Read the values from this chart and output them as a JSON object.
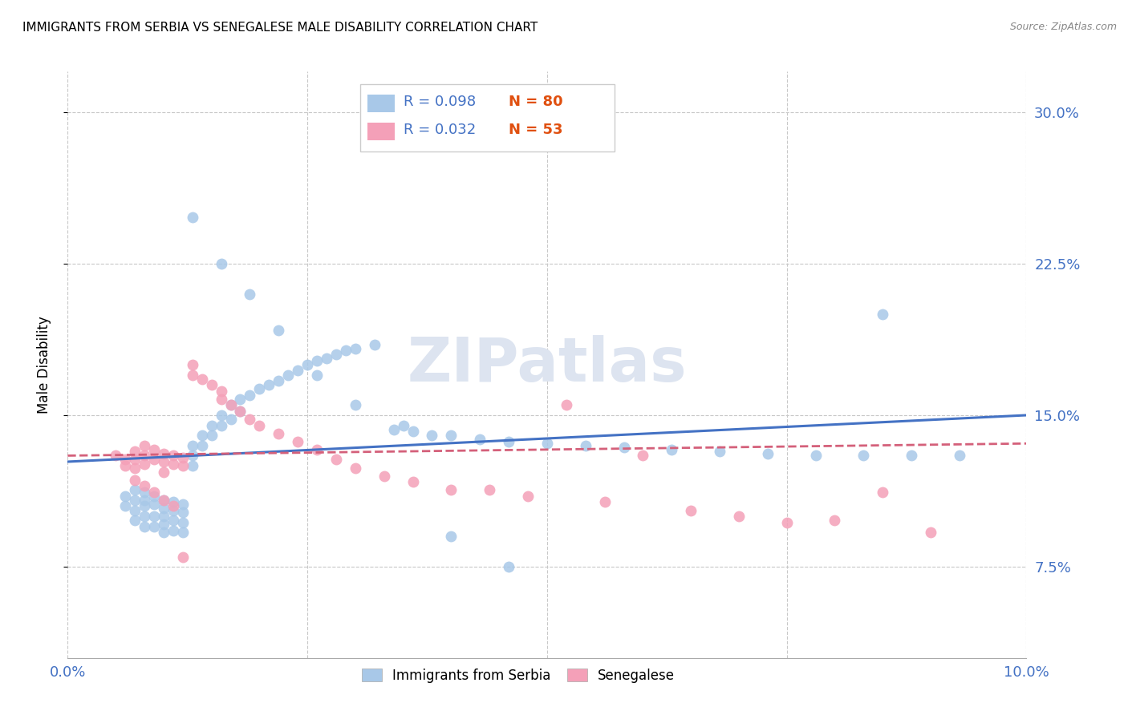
{
  "title": "IMMIGRANTS FROM SERBIA VS SENEGALESE MALE DISABILITY CORRELATION CHART",
  "source": "Source: ZipAtlas.com",
  "ylabel": "Male Disability",
  "ytick_labels": [
    "7.5%",
    "15.0%",
    "22.5%",
    "30.0%"
  ],
  "ytick_values": [
    0.075,
    0.15,
    0.225,
    0.3
  ],
  "xlim": [
    0.0,
    0.1
  ],
  "ylim": [
    0.03,
    0.32
  ],
  "serbia_color": "#a8c8e8",
  "senegal_color": "#f4a0b8",
  "serbia_line_color": "#4472c4",
  "senegal_line_color": "#d4607a",
  "legend_r_serbia": "R = 0.098",
  "legend_n_serbia": "N = 80",
  "legend_r_senegal": "R = 0.032",
  "legend_n_senegal": "N = 53",
  "n_color": "#e05010",
  "r_color": "#4472c4",
  "serbia_label": "Immigrants from Serbia",
  "senegal_label": "Senegalese",
  "serbia_scatter_x": [
    0.006,
    0.006,
    0.007,
    0.007,
    0.007,
    0.007,
    0.008,
    0.008,
    0.008,
    0.008,
    0.008,
    0.009,
    0.009,
    0.009,
    0.009,
    0.01,
    0.01,
    0.01,
    0.01,
    0.01,
    0.011,
    0.011,
    0.011,
    0.011,
    0.012,
    0.012,
    0.012,
    0.012,
    0.013,
    0.013,
    0.013,
    0.014,
    0.014,
    0.015,
    0.015,
    0.016,
    0.016,
    0.017,
    0.017,
    0.018,
    0.018,
    0.019,
    0.02,
    0.021,
    0.022,
    0.023,
    0.024,
    0.025,
    0.026,
    0.027,
    0.028,
    0.029,
    0.03,
    0.032,
    0.034,
    0.036,
    0.038,
    0.04,
    0.043,
    0.046,
    0.05,
    0.054,
    0.058,
    0.063,
    0.068,
    0.073,
    0.078,
    0.083,
    0.088,
    0.093,
    0.013,
    0.016,
    0.019,
    0.022,
    0.026,
    0.03,
    0.035,
    0.04,
    0.046,
    0.085
  ],
  "serbia_scatter_y": [
    0.11,
    0.105,
    0.113,
    0.108,
    0.103,
    0.098,
    0.112,
    0.108,
    0.105,
    0.1,
    0.095,
    0.11,
    0.106,
    0.1,
    0.095,
    0.108,
    0.104,
    0.1,
    0.096,
    0.092,
    0.107,
    0.103,
    0.098,
    0.093,
    0.106,
    0.102,
    0.097,
    0.092,
    0.135,
    0.13,
    0.125,
    0.14,
    0.135,
    0.145,
    0.14,
    0.15,
    0.145,
    0.155,
    0.148,
    0.158,
    0.152,
    0.16,
    0.163,
    0.165,
    0.167,
    0.17,
    0.172,
    0.175,
    0.177,
    0.178,
    0.18,
    0.182,
    0.183,
    0.185,
    0.143,
    0.142,
    0.14,
    0.14,
    0.138,
    0.137,
    0.136,
    0.135,
    0.134,
    0.133,
    0.132,
    0.131,
    0.13,
    0.13,
    0.13,
    0.13,
    0.248,
    0.225,
    0.21,
    0.192,
    0.17,
    0.155,
    0.145,
    0.09,
    0.075,
    0.2
  ],
  "senegal_scatter_x": [
    0.005,
    0.006,
    0.006,
    0.007,
    0.007,
    0.007,
    0.008,
    0.008,
    0.008,
    0.009,
    0.009,
    0.01,
    0.01,
    0.01,
    0.011,
    0.011,
    0.012,
    0.012,
    0.013,
    0.013,
    0.014,
    0.015,
    0.016,
    0.016,
    0.017,
    0.018,
    0.019,
    0.02,
    0.022,
    0.024,
    0.026,
    0.028,
    0.03,
    0.033,
    0.036,
    0.04,
    0.044,
    0.048,
    0.052,
    0.056,
    0.06,
    0.065,
    0.07,
    0.075,
    0.08,
    0.085,
    0.09,
    0.007,
    0.008,
    0.009,
    0.01,
    0.011,
    0.012
  ],
  "senegal_scatter_y": [
    0.13,
    0.128,
    0.125,
    0.132,
    0.128,
    0.124,
    0.135,
    0.13,
    0.126,
    0.133,
    0.128,
    0.131,
    0.127,
    0.122,
    0.13,
    0.126,
    0.129,
    0.125,
    0.175,
    0.17,
    0.168,
    0.165,
    0.162,
    0.158,
    0.155,
    0.152,
    0.148,
    0.145,
    0.141,
    0.137,
    0.133,
    0.128,
    0.124,
    0.12,
    0.117,
    0.113,
    0.113,
    0.11,
    0.155,
    0.107,
    0.13,
    0.103,
    0.1,
    0.097,
    0.098,
    0.112,
    0.092,
    0.118,
    0.115,
    0.112,
    0.108,
    0.105,
    0.08
  ],
  "serbia_trend_x": [
    0.0,
    0.1
  ],
  "serbia_trend_y": [
    0.127,
    0.15
  ],
  "senegal_trend_x": [
    0.0,
    0.1
  ],
  "senegal_trend_y": [
    0.13,
    0.136
  ],
  "grid_color": "#c8c8c8",
  "watermark": "ZIPatlas",
  "watermark_color": "#dde4f0",
  "background_color": "#ffffff",
  "title_fontsize": 11,
  "tick_label_color": "#4472c4"
}
